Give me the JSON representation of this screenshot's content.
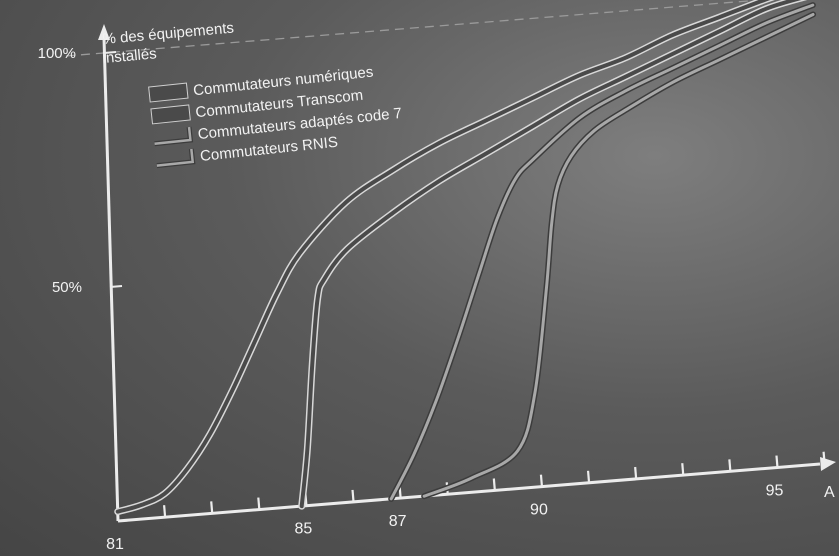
{
  "chart_data": {
    "type": "line",
    "ylabel_line1": "% des équipements",
    "ylabel_line2": "installés",
    "xlabel": "A",
    "y_ticks": [
      {
        "value": 100,
        "label": "100%"
      },
      {
        "value": 50,
        "label": "50%"
      }
    ],
    "x_ticks": [
      {
        "value": 81,
        "label": "81"
      },
      {
        "value": 85,
        "label": "85"
      },
      {
        "value": 87,
        "label": "87"
      },
      {
        "value": 90,
        "label": "90"
      },
      {
        "value": 95,
        "label": "95"
      }
    ],
    "xlim": [
      81,
      96.2
    ],
    "ylim": [
      0,
      100
    ],
    "legend_position": "top-left",
    "series": [
      {
        "name": "Commutateurs numériques",
        "color": "#4a4a4a",
        "style": "thick",
        "x": [
          81,
          81.5,
          82,
          82.5,
          83,
          83.5,
          84,
          84.5,
          85,
          86,
          87,
          88,
          89,
          90,
          91,
          92,
          93,
          94,
          95,
          95.8
        ],
        "y": [
          2,
          3,
          5,
          10,
          17,
          26,
          36,
          46,
          54,
          64,
          70,
          75,
          79,
          83,
          87,
          90,
          94,
          97,
          100,
          102
        ]
      },
      {
        "name": "Commutateurs Transcom",
        "color": "#4a4a4a",
        "style": "thick",
        "x": [
          84.9,
          85.05,
          85.2,
          85.35,
          85.5,
          86,
          87,
          88,
          89,
          90,
          91,
          92,
          93,
          94,
          95,
          95.9
        ],
        "y": [
          0,
          12,
          30,
          44,
          48,
          54,
          61,
          67,
          72,
          77,
          82,
          86,
          90,
          94,
          98,
          100
        ]
      },
      {
        "name": "Commutateurs adaptés code 7",
        "color": "#a8a8a8",
        "style": "double",
        "x": [
          86.8,
          87.3,
          87.8,
          88.3,
          88.8,
          89.2,
          89.6,
          90,
          91,
          92,
          93,
          94,
          95,
          96
        ],
        "y": [
          0,
          9,
          20,
          33,
          47,
          58,
          66,
          70,
          78,
          83,
          87,
          91,
          95,
          98
        ]
      },
      {
        "name": "Commutateurs RNIS",
        "color": "#a8a8a8",
        "style": "double",
        "x": [
          87.5,
          88.5,
          89.5,
          89.9,
          90.2,
          90.35,
          90.5,
          90.8,
          91.3,
          92,
          93,
          94,
          95,
          96
        ],
        "y": [
          0,
          3,
          8,
          20,
          42,
          56,
          64,
          70,
          75,
          79,
          84,
          88,
          92,
          96
        ]
      }
    ]
  }
}
